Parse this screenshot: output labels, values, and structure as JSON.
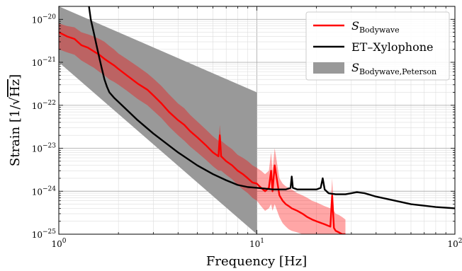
{
  "chart_data": {
    "type": "line",
    "x_scale": "log",
    "y_scale": "log",
    "xlim": [
      1,
      100
    ],
    "ylim": [
      1e-25,
      2e-20
    ],
    "xlabel": "Frequency [Hz]",
    "ylabel_prefix": "Strain [1/",
    "ylabel_root": "Hz",
    "ylabel_suffix": "]",
    "x_ticks": [
      {
        "value": 1,
        "base": "10",
        "exp": "0"
      },
      {
        "value": 10,
        "base": "10",
        "exp": "1"
      },
      {
        "value": 100,
        "base": "10",
        "exp": "2"
      }
    ],
    "y_ticks": [
      {
        "value": 1e-25,
        "base": "10",
        "exp": "−25"
      },
      {
        "value": 1e-24,
        "base": "10",
        "exp": "−24"
      },
      {
        "value": 1e-23,
        "base": "10",
        "exp": "−23"
      },
      {
        "value": 1e-22,
        "base": "10",
        "exp": "−22"
      },
      {
        "value": 1e-21,
        "base": "10",
        "exp": "−21"
      },
      {
        "value": 1e-20,
        "base": "10",
        "exp": "−20"
      }
    ],
    "grid": true,
    "legend_position": "top-right",
    "legend": [
      {
        "main": "S",
        "sub": "Bodywave",
        "color": "#ff0000",
        "kind": "line"
      },
      {
        "main": "ET–Xylophone",
        "sub": "",
        "color": "#000000",
        "kind": "line"
      },
      {
        "main": "S",
        "sub": "Bodywave,Peterson",
        "color": "#999999",
        "kind": "patch"
      }
    ],
    "series": [
      {
        "legend_index": 0,
        "color": "#ff0000",
        "x": [
          1,
          1.1,
          1.2,
          1.3,
          1.4,
          1.5,
          1.6,
          1.7,
          1.8,
          1.9,
          2.0,
          2.2,
          2.5,
          2.8,
          3.0,
          3.3,
          3.6,
          4.0,
          4.3,
          4.6,
          5.0,
          5.5,
          6.0,
          6.4,
          6.5,
          6.6,
          7.0,
          7.5,
          8.0,
          8.5,
          9.0,
          9.5,
          10.0,
          10.5,
          11.0,
          11.5,
          11.8,
          12.0,
          12.3,
          13.0,
          13.5,
          14.0,
          14.5,
          15.0,
          16.0,
          17.0,
          18.0,
          19.0,
          20.0,
          22.0,
          23.5,
          24.0,
          24.5,
          25.0,
          26.0,
          27.0,
          28.0
        ],
        "y": [
          5e-21,
          4e-21,
          3.5e-21,
          2.5e-21,
          2.2e-21,
          1.8e-21,
          1.5e-21,
          1.2e-21,
          1e-21,
          8.5e-22,
          7e-22,
          5e-22,
          3.2e-22,
          2.3e-22,
          1.7e-22,
          1.1e-22,
          7e-23,
          4.5e-23,
          3.5e-23,
          2.5e-23,
          1.8e-23,
          1.2e-23,
          8e-24,
          6.5e-24,
          2e-23,
          6.5e-24,
          5e-24,
          4e-24,
          3e-24,
          2.5e-24,
          2e-24,
          1.6e-24,
          1.5e-24,
          1.2e-24,
          1e-24,
          1.2e-24,
          3e-24,
          1e-24,
          4e-24,
          8e-25,
          6e-25,
          5e-25,
          4.5e-25,
          4e-25,
          3.5e-25,
          3e-25,
          2.5e-25,
          2.2e-25,
          2e-25,
          1.7e-25,
          1.5e-25,
          8e-25,
          1.4e-25,
          1.2e-25,
          1.1e-25,
          1e-25,
          1e-25
        ],
        "band_lower": [
          2e-21,
          1.7e-21,
          1.5e-21,
          1.1e-21,
          9e-22,
          7.5e-22,
          6e-22,
          5e-22,
          4e-22,
          3.5e-22,
          3e-22,
          2.2e-22,
          1.4e-22,
          1e-22,
          7.5e-23,
          5e-23,
          3.2e-23,
          2e-23,
          1.5e-23,
          1.1e-23,
          8e-24,
          5.5e-24,
          3.8e-24,
          3e-24,
          3e-24,
          3e-24,
          2.4e-24,
          1.9e-24,
          1.4e-24,
          1.1e-24,
          9e-25,
          7e-25,
          6e-25,
          4.5e-25,
          3.5e-25,
          4e-25,
          5e-25,
          3.5e-25,
          5e-25,
          2.5e-25,
          1.8e-25,
          1.5e-25,
          1.3e-25,
          1.2e-25,
          1.1e-25,
          1e-25,
          1e-25,
          1e-25,
          1e-25,
          1e-25,
          1e-25,
          1e-25,
          1e-25,
          1e-25,
          1e-25,
          1e-25,
          1e-25
        ],
        "band_upper": [
          8e-21,
          7e-21,
          6.5e-21,
          5e-21,
          4.5e-21,
          4e-21,
          3.5e-21,
          3e-21,
          2.4e-21,
          2e-21,
          1.6e-21,
          1.2e-21,
          8e-22,
          5.5e-22,
          4.2e-22,
          2.8e-22,
          1.8e-22,
          1.1e-22,
          8.5e-23,
          6e-23,
          4.2e-23,
          2.8e-23,
          1.9e-23,
          1.5e-23,
          3.5e-23,
          1.5e-23,
          1.2e-23,
          9.5e-24,
          7e-24,
          6e-24,
          5e-24,
          4e-24,
          3.5e-24,
          3e-24,
          2.5e-24,
          3e-24,
          8e-24,
          3e-24,
          1e-23,
          2e-24,
          1.5e-24,
          1.3e-24,
          1.2e-24,
          1.1e-24,
          9e-25,
          8e-25,
          7e-25,
          6e-25,
          5.5e-25,
          4.5e-25,
          4e-25,
          2e-24,
          3.5e-25,
          3e-25,
          2.8e-25,
          2.5e-25,
          2.2e-25
        ]
      },
      {
        "legend_index": 1,
        "color": "#000000",
        "x": [
          1.42,
          1.45,
          1.5,
          1.55,
          1.6,
          1.65,
          1.7,
          1.75,
          1.8,
          1.9,
          2.0,
          2.5,
          3.0,
          4.0,
          5.0,
          6.0,
          7.0,
          8.0,
          9.0,
          10.0,
          11.0,
          12.0,
          13.0,
          14.0,
          14.8,
          15.0,
          15.2,
          16.0,
          18.0,
          20.0,
          21.0,
          21.5,
          22.0,
          23.0,
          25.0,
          28.0,
          30.0,
          32.0,
          35.0,
          40.0,
          50.0,
          60.0,
          70.0,
          80.0,
          100.0
        ],
        "y": [
          2e-20,
          1e-20,
          5e-21,
          2.5e-21,
          1.3e-21,
          7e-22,
          4e-22,
          2.7e-22,
          2e-22,
          1.5e-22,
          1.2e-22,
          4.5e-23,
          2.2e-23,
          8e-24,
          4e-24,
          2.5e-24,
          1.8e-24,
          1.4e-24,
          1.25e-24,
          1.2e-24,
          1.15e-24,
          1.1e-24,
          1.1e-24,
          1.1e-24,
          1.2e-24,
          2.2e-24,
          1.2e-24,
          1.1e-24,
          1.1e-24,
          1.1e-24,
          1.2e-24,
          2e-24,
          1.1e-24,
          9e-25,
          8.5e-25,
          8.5e-25,
          9e-25,
          9.5e-25,
          9e-25,
          7.5e-25,
          6e-25,
          5e-25,
          4.6e-25,
          4.3e-25,
          4e-25
        ]
      }
    ],
    "bands": [
      {
        "legend_index": 2,
        "color": "#999999",
        "x": [
          1,
          10
        ],
        "lower": [
          1e-21,
          1e-25
        ],
        "upper": [
          2e-20,
          2e-22
        ]
      }
    ]
  }
}
